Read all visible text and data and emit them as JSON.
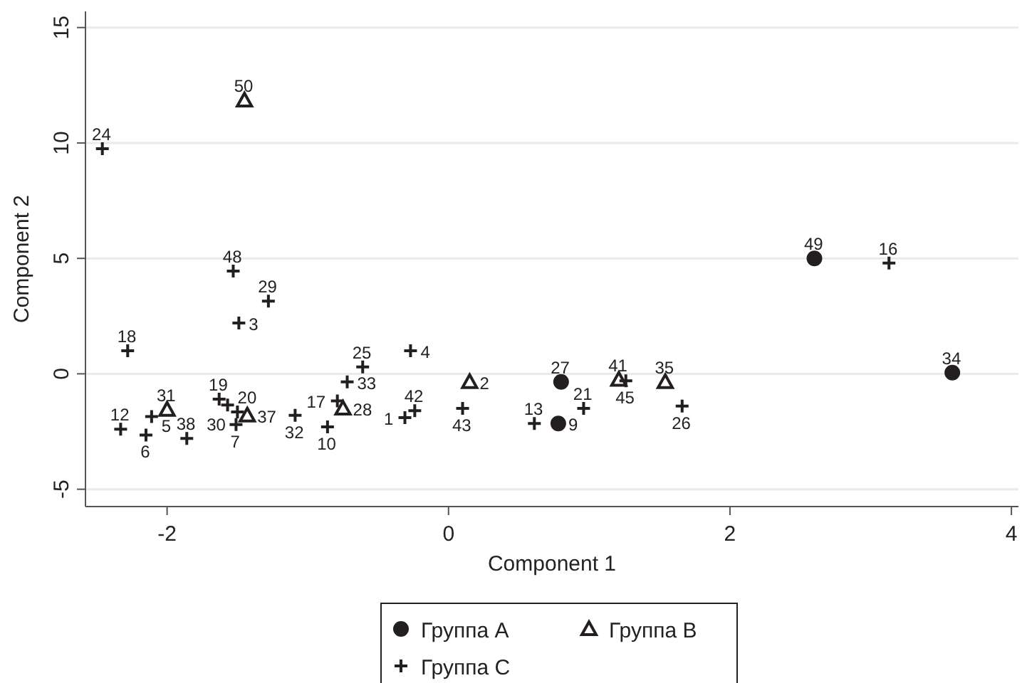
{
  "chart_data": {
    "type": "scatter",
    "xlabel": "Component 1",
    "ylabel": "Component 2",
    "xlim": [
      -2.58,
      4.05
    ],
    "ylim": [
      -5.75,
      15.7
    ],
    "xticks": [
      -2,
      0,
      2,
      4
    ],
    "yticks": [
      -5,
      0,
      5,
      10,
      15
    ],
    "grid": "y",
    "legend": "bottom",
    "series": [
      {
        "name": "Группа A",
        "color": "#231f20",
        "marker": "circle",
        "x": [
          2.6,
          3.58,
          0.8,
          0.78
        ],
        "values": [
          5.0,
          0.05,
          -0.35,
          -2.15
        ]
      },
      {
        "name": "Группа B",
        "color": "#231f20",
        "marker": "triangle",
        "x": [
          -1.45,
          0.15,
          1.21,
          1.54,
          -2.0,
          -0.75,
          -1.43
        ],
        "values": [
          11.85,
          -0.35,
          -0.25,
          -0.35,
          -1.55,
          -1.5,
          -1.8
        ]
      },
      {
        "name": "Группа C",
        "color": "#231f20",
        "marker": "cross",
        "x": [
          -2.46,
          -1.53,
          -1.28,
          -1.49,
          -2.28,
          -0.27,
          -0.61,
          -0.72,
          -0.79,
          -0.86,
          -1.09,
          -0.31,
          -0.24,
          0.1,
          0.96,
          1.66,
          1.26,
          3.13,
          -2.33,
          -2.11,
          -2.15,
          -1.86,
          -1.63,
          -1.57,
          -1.5,
          -1.51,
          0.61
        ],
        "values": [
          9.75,
          4.45,
          3.15,
          2.2,
          1.0,
          1.0,
          0.3,
          -0.35,
          -1.17,
          -2.3,
          -1.8,
          -1.9,
          -1.6,
          -1.5,
          -1.5,
          -1.4,
          -0.3,
          4.8,
          -2.4,
          -1.85,
          -2.65,
          -2.8,
          -1.1,
          -1.35,
          -1.65,
          -2.2,
          -2.15
        ]
      }
    ],
    "annotations": [
      {
        "text": "49",
        "x": 2.6,
        "y": 5.0
      },
      {
        "text": "34",
        "x": 3.58,
        "y": 0.05
      },
      {
        "text": "27",
        "x": 0.8,
        "y": -0.35
      },
      {
        "text": "9",
        "x": 0.78,
        "y": -2.15
      },
      {
        "text": "50",
        "x": -1.45,
        "y": 11.85
      },
      {
        "text": "2",
        "x": 0.15,
        "y": -0.35
      },
      {
        "text": "41",
        "x": 1.21,
        "y": -0.25
      },
      {
        "text": "35",
        "x": 1.54,
        "y": -0.35
      },
      {
        "text": "31",
        "x": -2.0,
        "y": -1.55
      },
      {
        "text": "28",
        "x": -0.75,
        "y": -1.5
      },
      {
        "text": "37",
        "x": -1.43,
        "y": -1.8
      },
      {
        "text": "24",
        "x": -2.46,
        "y": 9.75
      },
      {
        "text": "48",
        "x": -1.53,
        "y": 4.45
      },
      {
        "text": "29",
        "x": -1.28,
        "y": 3.15
      },
      {
        "text": "3",
        "x": -1.49,
        "y": 2.2
      },
      {
        "text": "18",
        "x": -2.28,
        "y": 1.0
      },
      {
        "text": "4",
        "x": -0.27,
        "y": 1.0
      },
      {
        "text": "25",
        "x": -0.61,
        "y": 0.3
      },
      {
        "text": "33",
        "x": -0.72,
        "y": -0.35
      },
      {
        "text": "17",
        "x": -0.79,
        "y": -1.17
      },
      {
        "text": "10",
        "x": -0.86,
        "y": -2.3
      },
      {
        "text": "32",
        "x": -1.09,
        "y": -1.8
      },
      {
        "text": "1",
        "x": -0.31,
        "y": -1.9
      },
      {
        "text": "42",
        "x": -0.24,
        "y": -1.6
      },
      {
        "text": "43",
        "x": 0.1,
        "y": -1.5
      },
      {
        "text": "21",
        "x": 0.96,
        "y": -1.5
      },
      {
        "text": "26",
        "x": 1.66,
        "y": -1.4
      },
      {
        "text": "45",
        "x": 1.26,
        "y": -0.3
      },
      {
        "text": "16",
        "x": 3.13,
        "y": 4.8
      },
      {
        "text": "12",
        "x": -2.33,
        "y": -2.4
      },
      {
        "text": "5",
        "x": -2.11,
        "y": -1.85
      },
      {
        "text": "6",
        "x": -2.15,
        "y": -2.65
      },
      {
        "text": "38",
        "x": -1.86,
        "y": -2.8
      },
      {
        "text": "19",
        "x": -1.63,
        "y": -1.1
      },
      {
        "text": "20",
        "x": -1.57,
        "y": -1.35
      },
      {
        "text": "30",
        "x": -1.5,
        "y": -1.65
      },
      {
        "text": "7",
        "x": -1.51,
        "y": -2.2
      },
      {
        "text": "13",
        "x": 0.61,
        "y": -2.15
      }
    ]
  }
}
